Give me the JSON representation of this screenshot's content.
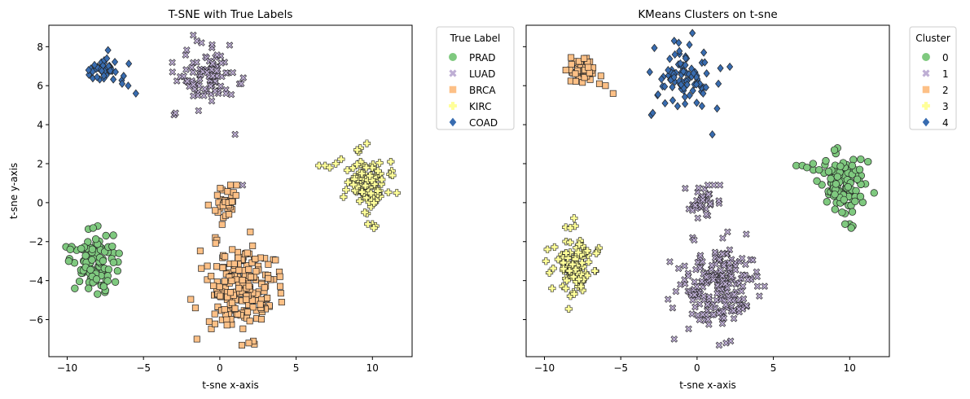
{
  "chart_data": [
    {
      "type": "scatter",
      "title": "T-SNE with True Labels",
      "xlabel": "t-sne x-axis",
      "ylabel": "t-sne y-axis",
      "xlim": [
        -11.2,
        12.6
      ],
      "ylim": [
        -7.9,
        9.1
      ],
      "xticks": [
        -10,
        -5,
        0,
        5,
        10
      ],
      "yticks": [
        -6,
        -4,
        -2,
        0,
        2,
        4,
        6,
        8
      ],
      "grid": false,
      "legend": {
        "title": "True Label",
        "placement": "outside-top-right"
      },
      "series": [
        {
          "name": "PRAD",
          "marker": "circle",
          "color": "#7fc97f",
          "clusters": [
            {
              "cx": -8.2,
              "cy": -3.0,
              "sx": 0.7,
              "sy": 0.65,
              "n": 90
            }
          ],
          "extra_points": [
            [
              -8.0,
              -1.2
            ],
            [
              -8.3,
              -1.3
            ],
            [
              -9.9,
              -3.0
            ],
            [
              -9.8,
              -2.4
            ],
            [
              -8.6,
              -4.4
            ],
            [
              -7.5,
              -4.5
            ],
            [
              -7.6,
              -4.3
            ],
            [
              -9.5,
              -4.4
            ],
            [
              -6.7,
              -3.5
            ],
            [
              -6.6,
              -2.6
            ]
          ]
        },
        {
          "name": "LUAD",
          "marker": "x",
          "color": "#beaed4",
          "clusters": [
            {
              "cx": -0.8,
              "cy": 6.4,
              "sx": 0.9,
              "sy": 0.75,
              "n": 85
            }
          ],
          "extra_points": [
            [
              -1.5,
              8.3
            ],
            [
              -1.2,
              8.2
            ],
            [
              -0.5,
              8.1
            ],
            [
              -3.0,
              4.5
            ],
            [
              -2.9,
              4.6
            ],
            [
              1.0,
              3.5
            ],
            [
              1.5,
              0.9
            ],
            [
              -3.1,
              6.7
            ],
            [
              1.4,
              6.1
            ],
            [
              0.4,
              5.6
            ]
          ]
        },
        {
          "name": "BRCA",
          "marker": "square",
          "color": "#fdc086",
          "clusters": [
            {
              "cx": 1.3,
              "cy": -4.3,
              "sx": 1.2,
              "sy": 1.2,
              "n": 200
            },
            {
              "cx": 0.3,
              "cy": 0.2,
              "sx": 0.5,
              "sy": 0.35,
              "n": 30
            }
          ],
          "extra_points": [
            [
              0.7,
              0.9
            ],
            [
              1.1,
              0.9
            ],
            [
              0.6,
              -0.6
            ],
            [
              -0.3,
              -0.4
            ],
            [
              2.0,
              -1.5
            ],
            [
              -1.6,
              -5.4
            ],
            [
              -1.5,
              -7.0
            ],
            [
              2.2,
              -7.1
            ],
            [
              1.9,
              -7.2
            ]
          ]
        },
        {
          "name": "KIRC",
          "marker": "plus",
          "color": "#ffff99",
          "clusters": [
            {
              "cx": 9.5,
              "cy": 1.0,
              "sx": 0.7,
              "sy": 0.6,
              "n": 105
            }
          ],
          "extra_points": [
            [
              6.5,
              1.9
            ],
            [
              6.9,
              1.9
            ],
            [
              7.2,
              1.8
            ],
            [
              7.6,
              2.0
            ],
            [
              9.5,
              -0.5
            ],
            [
              10.0,
              -1.1
            ],
            [
              10.2,
              -1.2
            ],
            [
              10.1,
              -1.3
            ],
            [
              9.7,
              -1.1
            ],
            [
              11.2,
              2.1
            ],
            [
              11.6,
              0.5
            ],
            [
              9.2,
              2.8
            ],
            [
              9.0,
              2.7
            ]
          ]
        },
        {
          "name": "COAD",
          "marker": "diamond",
          "color": "#386cb0",
          "clusters": [
            {
              "cx": -7.6,
              "cy": 6.9,
              "sx": 0.5,
              "sy": 0.3,
              "n": 45
            }
          ],
          "extra_points": [
            [
              -5.5,
              5.6
            ],
            [
              -6.0,
              6.0
            ],
            [
              -6.4,
              6.1
            ],
            [
              -6.3,
              6.5
            ],
            [
              -8.6,
              6.8
            ],
            [
              -7.4,
              7.4
            ]
          ]
        }
      ]
    },
    {
      "type": "scatter",
      "title": "KMeans Clusters on t-sne",
      "xlabel": "t-sne x-axis",
      "ylabel": "",
      "xlim": [
        -11.2,
        12.6
      ],
      "ylim": [
        -7.9,
        9.1
      ],
      "xticks": [
        -10,
        -5,
        0,
        5,
        10
      ],
      "yticks": [
        -6,
        -4,
        -2,
        0,
        2,
        4,
        6,
        8
      ],
      "shared_y": true,
      "grid": false,
      "legend": {
        "title": "Cluster",
        "placement": "outside-top-right"
      },
      "series": [
        {
          "name": "0",
          "marker": "circle",
          "color": "#7fc97f",
          "clusters": [
            {
              "cx": 9.5,
              "cy": 1.0,
              "sx": 0.7,
              "sy": 0.6,
              "n": 105
            }
          ],
          "extra_points": [
            [
              6.5,
              1.9
            ],
            [
              6.9,
              1.9
            ],
            [
              7.2,
              1.8
            ],
            [
              7.6,
              2.0
            ],
            [
              9.5,
              -0.5
            ],
            [
              10.0,
              -1.1
            ],
            [
              10.2,
              -1.2
            ],
            [
              10.1,
              -1.3
            ],
            [
              9.7,
              -1.1
            ],
            [
              11.2,
              2.1
            ],
            [
              11.6,
              0.5
            ],
            [
              9.2,
              2.8
            ],
            [
              9.0,
              2.7
            ]
          ]
        },
        {
          "name": "1",
          "marker": "x",
          "color": "#beaed4",
          "clusters": [
            {
              "cx": 1.3,
              "cy": -4.3,
              "sx": 1.2,
              "sy": 1.2,
              "n": 200
            },
            {
              "cx": 0.3,
              "cy": 0.2,
              "sx": 0.5,
              "sy": 0.35,
              "n": 30
            }
          ],
          "extra_points": [
            [
              0.7,
              0.9
            ],
            [
              1.1,
              0.9
            ],
            [
              0.6,
              -0.6
            ],
            [
              -0.3,
              -0.4
            ],
            [
              2.0,
              -1.5
            ],
            [
              -1.6,
              -5.4
            ],
            [
              -1.5,
              -7.0
            ],
            [
              2.2,
              -7.1
            ],
            [
              1.9,
              -7.2
            ],
            [
              1.5,
              0.9
            ]
          ]
        },
        {
          "name": "2",
          "marker": "square",
          "color": "#fdc086",
          "clusters": [
            {
              "cx": -7.6,
              "cy": 6.8,
              "sx": 0.5,
              "sy": 0.35,
              "n": 45
            }
          ],
          "extra_points": [
            [
              -5.5,
              5.6
            ],
            [
              -6.0,
              6.0
            ],
            [
              -6.4,
              6.1
            ],
            [
              -6.3,
              6.5
            ],
            [
              -8.6,
              6.8
            ],
            [
              -7.4,
              7.4
            ]
          ]
        },
        {
          "name": "3",
          "marker": "plus",
          "color": "#ffff99",
          "clusters": [
            {
              "cx": -8.2,
              "cy": -3.0,
              "sx": 0.7,
              "sy": 0.65,
              "n": 90
            }
          ],
          "extra_points": [
            [
              -8.0,
              -1.2
            ],
            [
              -8.3,
              -1.3
            ],
            [
              -9.9,
              -3.0
            ],
            [
              -9.8,
              -2.4
            ],
            [
              -8.6,
              -4.4
            ],
            [
              -7.5,
              -4.5
            ],
            [
              -7.6,
              -4.3
            ],
            [
              -9.5,
              -4.4
            ],
            [
              -6.7,
              -3.5
            ],
            [
              -6.6,
              -2.6
            ]
          ]
        },
        {
          "name": "4",
          "marker": "diamond",
          "color": "#386cb0",
          "clusters": [
            {
              "cx": -0.8,
              "cy": 6.4,
              "sx": 0.9,
              "sy": 0.75,
              "n": 85
            }
          ],
          "extra_points": [
            [
              -1.5,
              8.3
            ],
            [
              -1.2,
              8.2
            ],
            [
              -0.5,
              8.1
            ],
            [
              -3.0,
              4.5
            ],
            [
              -2.9,
              4.6
            ],
            [
              1.0,
              3.5
            ],
            [
              -3.1,
              6.7
            ],
            [
              1.4,
              6.1
            ],
            [
              0.4,
              5.6
            ]
          ]
        }
      ]
    }
  ]
}
